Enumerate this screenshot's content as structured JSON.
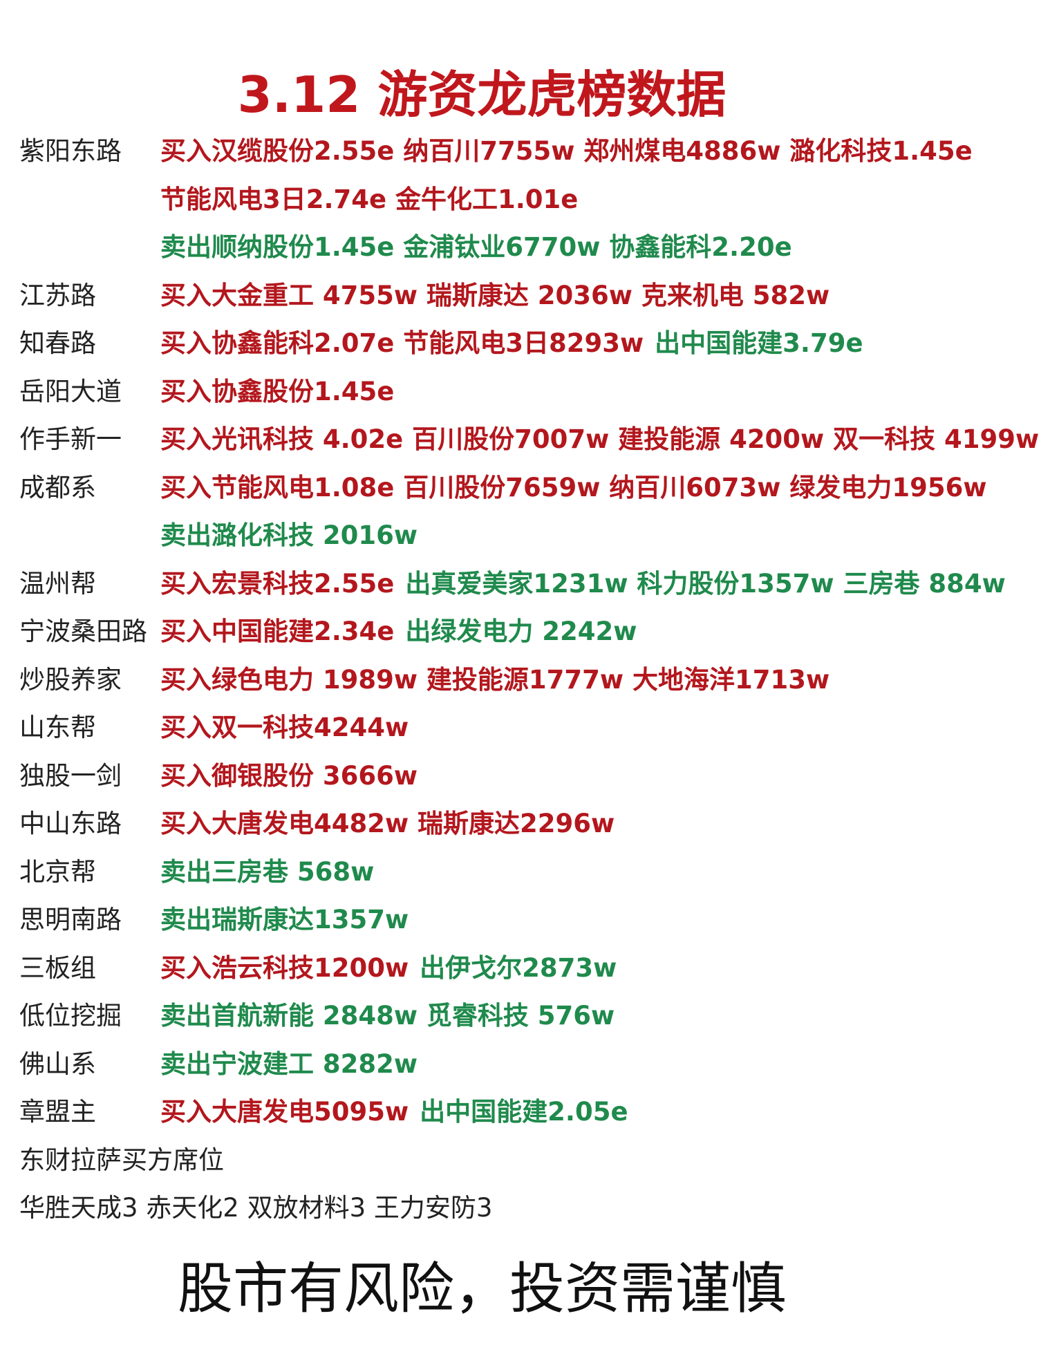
{
  "title": "3.12 游资龙虎榜数据",
  "rows": [
    {
      "name": "紫阳东路",
      "lines": [
        [
          {
            "text": "买入汉缆股份2.55e 纳百川7755w 郑州煤电4886w 潞化科技1.45e",
            "color": "#b3171d"
          }
        ],
        [
          {
            "text": "节能风电3日2.74e 金牛化工1.01e",
            "color": "#b3171d"
          }
        ],
        [
          {
            "text": "卖出顺纳股份1.45e 金浦钛业6770w 协鑫能科2.20e",
            "color": "#1f8a4c"
          }
        ]
      ]
    },
    {
      "name": "江苏路",
      "lines": [
        [
          {
            "text": "买入大金重工 4755w 瑞斯康达 2036w 克来机电 582w",
            "color": "#b3171d"
          }
        ]
      ]
    },
    {
      "name": "知春路",
      "lines": [
        [
          {
            "text": "买入协鑫能科2.07e 节能风电3日8293w",
            "color": "#b3171d"
          },
          {
            "text": "出中国能建3.79e",
            "color": "#1f8a4c"
          }
        ]
      ]
    },
    {
      "name": "岳阳大道",
      "lines": [
        [
          {
            "text": "买入协鑫股份1.45e",
            "color": "#b3171d"
          }
        ]
      ]
    },
    {
      "name": "作手新一",
      "lines": [
        [
          {
            "text": "买入光讯科技 4.02e 百川股份7007w 建投能源 4200w 双一科技 4199w",
            "color": "#b3171d"
          }
        ]
      ]
    },
    {
      "name": "成都系",
      "lines": [
        [
          {
            "text": "买入节能风电1.08e 百川股份7659w 纳百川6073w 绿发电力1956w",
            "color": "#b3171d"
          }
        ],
        [
          {
            "text": "卖出潞化科技 2016w",
            "color": "#1f8a4c"
          }
        ]
      ]
    },
    {
      "name": "温州帮",
      "lines": [
        [
          {
            "text": "买入宏景科技2.55e",
            "color": "#b3171d"
          },
          {
            "text": "出真爱美家1231w 科力股份1357w 三房巷 884w",
            "color": "#1f8a4c"
          }
        ]
      ]
    },
    {
      "name": "宁波桑田路",
      "lines": [
        [
          {
            "text": "买入中国能建2.34e",
            "color": "#b3171d"
          },
          {
            "text": "出绿发电力 2242w",
            "color": "#1f8a4c"
          }
        ]
      ]
    },
    {
      "name": "炒股养家",
      "lines": [
        [
          {
            "text": "买入绿色电力 1989w 建投能源1777w 大地海洋1713w",
            "color": "#b3171d"
          }
        ]
      ]
    },
    {
      "name": "山东帮",
      "lines": [
        [
          {
            "text": "买入双一科技4244w",
            "color": "#b3171d"
          }
        ]
      ]
    },
    {
      "name": "独股一剑",
      "lines": [
        [
          {
            "text": "买入御银股份 3666w",
            "color": "#b3171d"
          }
        ]
      ]
    },
    {
      "name": "中山东路",
      "lines": [
        [
          {
            "text": "买入大唐发电4482w 瑞斯康达2296w",
            "color": "#b3171d"
          }
        ]
      ]
    },
    {
      "name": "北京帮",
      "lines": [
        [
          {
            "text": "卖出三房巷 568w",
            "color": "#1f8a4c"
          }
        ]
      ]
    },
    {
      "name": "思明南路",
      "lines": [
        [
          {
            "text": "卖出瑞斯康达1357w",
            "color": "#1f8a4c"
          }
        ]
      ]
    },
    {
      "name": "三板组",
      "lines": [
        [
          {
            "text": "买入浩云科技1200w",
            "color": "#b3171d"
          },
          {
            "text": "出伊戈尔2873w",
            "color": "#1f8a4c"
          }
        ]
      ]
    },
    {
      "name": "低位挖掘",
      "lines": [
        [
          {
            "text": "卖出首航新能 2848w 觅睿科技 576w",
            "color": "#1f8a4c"
          }
        ]
      ]
    },
    {
      "name": "佛山系",
      "lines": [
        [
          {
            "text": "卖出宁波建工 8282w",
            "color": "#1f8a4c"
          }
        ]
      ]
    },
    {
      "name": "章盟主",
      "lines": [
        [
          {
            "text": "买入大唐发电5095w",
            "color": "#b3171d"
          },
          {
            "text": "出中国能建2.05e",
            "color": "#1f8a4c"
          }
        ]
      ]
    }
  ],
  "notes": [
    "东财拉萨买方席位",
    "华胜天成3 赤天化2 双放材料3 王力安防3"
  ],
  "footer": "股市有风险，投资需谨慎"
}
